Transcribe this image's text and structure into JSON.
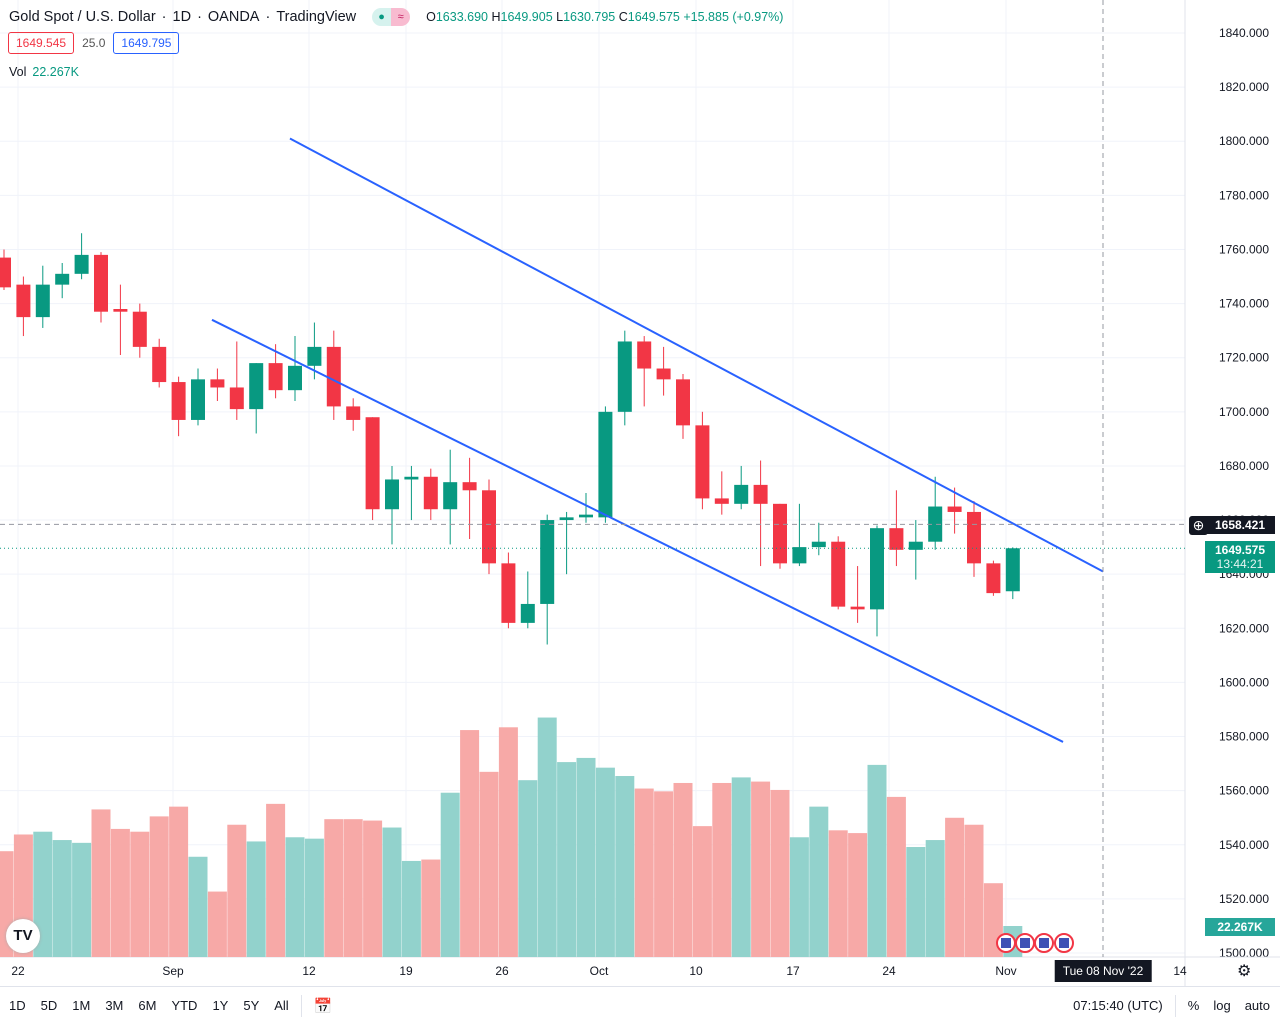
{
  "header": {
    "symbol": "Gold Spot / U.S. Dollar",
    "interval": "1D",
    "broker": "OANDA",
    "source": "TradingView",
    "sep": "·",
    "ohlc": {
      "o_label": "O",
      "o": "1633.690",
      "h_label": "H",
      "h": "1649.905",
      "l_label": "L",
      "l": "1630.795",
      "c_label": "C",
      "c": "1649.575",
      "change": "+15.885 (+0.97%)"
    },
    "bid": "1649.545",
    "spread": "25.0",
    "ask": "1649.795",
    "vol_label": "Vol",
    "vol_value": "22.267K"
  },
  "colors": {
    "up": "#089981",
    "down": "#f23645",
    "up_vol": "#92d2cc",
    "down_vol": "#f7a9a7",
    "line": "#2962ff"
  },
  "price_axis": {
    "labels": [
      "1840.000",
      "1820.000",
      "1800.000",
      "1780.000",
      "1760.000",
      "1740.000",
      "1720.000",
      "1700.000",
      "1680.000",
      "1660.000",
      "1640.000",
      "1620.000",
      "1600.000",
      "1580.000",
      "1560.000",
      "1540.000",
      "1520.000",
      "1500.000"
    ],
    "crosshair_price": "1658.421",
    "last_price": "1649.575",
    "countdown": "13:44:21",
    "volume_tag": "22.267K"
  },
  "time_axis": {
    "labels": [
      "22",
      "Sep",
      "12",
      "19",
      "26",
      "Oct",
      "10",
      "17",
      "24",
      "Nov",
      "14"
    ],
    "crosshair_date": "Tue 08 Nov '22"
  },
  "bottom_bar": {
    "ranges": [
      "1D",
      "5D",
      "1M",
      "3M",
      "6M",
      "YTD",
      "1Y",
      "5Y",
      "All"
    ],
    "time": "07:15:40 (UTC)",
    "percent": "%",
    "log": "log",
    "auto": "auto"
  },
  "chart_data": {
    "type": "candlestick",
    "ohlc": [
      [
        1757,
        1760,
        1745,
        1746
      ],
      [
        1747,
        1750,
        1728,
        1735
      ],
      [
        1735,
        1754,
        1731,
        1747
      ],
      [
        1747,
        1755,
        1742,
        1751
      ],
      [
        1751,
        1766,
        1749,
        1758
      ],
      [
        1758,
        1759,
        1733,
        1737
      ],
      [
        1738,
        1747,
        1721,
        1737
      ],
      [
        1737,
        1740,
        1720,
        1724
      ],
      [
        1724,
        1727,
        1709,
        1711
      ],
      [
        1711,
        1713,
        1691,
        1697
      ],
      [
        1697,
        1716,
        1695,
        1712
      ],
      [
        1712,
        1716,
        1704,
        1709
      ],
      [
        1709,
        1726,
        1697,
        1701
      ],
      [
        1701,
        1718,
        1692,
        1718
      ],
      [
        1718,
        1725,
        1705,
        1708
      ],
      [
        1708,
        1728,
        1704,
        1717
      ],
      [
        1717,
        1733,
        1712,
        1724
      ],
      [
        1724,
        1730,
        1697,
        1702
      ],
      [
        1702,
        1705,
        1693,
        1697
      ],
      [
        1698,
        1698,
        1660,
        1664
      ],
      [
        1664,
        1680,
        1651,
        1675
      ],
      [
        1675,
        1680,
        1660,
        1676
      ],
      [
        1676,
        1679,
        1660,
        1664
      ],
      [
        1664,
        1686,
        1651,
        1674
      ],
      [
        1674,
        1683,
        1653,
        1671
      ],
      [
        1671,
        1675,
        1640,
        1644
      ],
      [
        1644,
        1648,
        1620,
        1622
      ],
      [
        1622,
        1641,
        1620,
        1629
      ],
      [
        1629,
        1662,
        1614,
        1660
      ],
      [
        1660,
        1663,
        1640,
        1661
      ],
      [
        1661,
        1670,
        1659,
        1662
      ],
      [
        1661,
        1702,
        1659,
        1700
      ],
      [
        1700,
        1730,
        1695,
        1726
      ],
      [
        1726,
        1728,
        1702,
        1716
      ],
      [
        1716,
        1724,
        1706,
        1712
      ],
      [
        1712,
        1714,
        1690,
        1695
      ],
      [
        1695,
        1700,
        1664,
        1668
      ],
      [
        1668,
        1678,
        1662,
        1666
      ],
      [
        1666,
        1680,
        1664,
        1673
      ],
      [
        1673,
        1682,
        1643,
        1666
      ],
      [
        1666,
        1666,
        1642,
        1644
      ],
      [
        1644,
        1666,
        1643,
        1650
      ],
      [
        1650,
        1659,
        1647,
        1652
      ],
      [
        1652,
        1654,
        1627,
        1628
      ],
      [
        1628,
        1643,
        1622,
        1627
      ],
      [
        1627,
        1658,
        1617,
        1657
      ],
      [
        1657,
        1671,
        1643,
        1649
      ],
      [
        1649,
        1660,
        1638,
        1652
      ],
      [
        1652,
        1676,
        1649,
        1665
      ],
      [
        1665,
        1672,
        1655,
        1663
      ],
      [
        1663,
        1667,
        1639,
        1644
      ],
      [
        1644,
        1645,
        1632,
        1633
      ],
      [
        1633.69,
        1649.905,
        1630.795,
        1649.575
      ]
    ],
    "volume_k": [
      76,
      88,
      90,
      84,
      82,
      106,
      92,
      90,
      101,
      108,
      72,
      47,
      95,
      83,
      110,
      86,
      85,
      99,
      99,
      98,
      93,
      69,
      70,
      118,
      163,
      133,
      165,
      127,
      172,
      140,
      143,
      136,
      130,
      121,
      119,
      125,
      94,
      125,
      129,
      126,
      120,
      86,
      108,
      91,
      89,
      138,
      115,
      79,
      84,
      100,
      95,
      53,
      22.267
    ],
    "trendlines": [
      {
        "from": [
          14.74,
          1801
        ],
        "to": [
          56.65,
          1641
        ]
      },
      {
        "from": [
          10.72,
          1734
        ],
        "to": [
          54.59,
          1578
        ]
      }
    ],
    "ylim": [
      1500,
      1840
    ]
  }
}
